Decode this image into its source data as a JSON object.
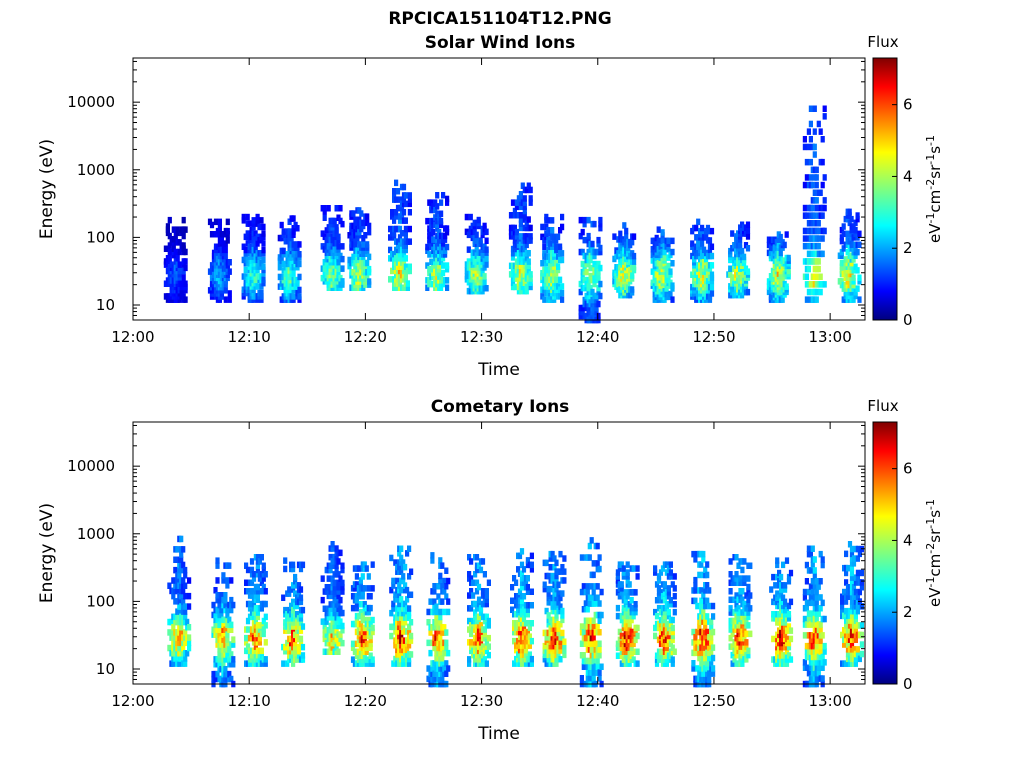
{
  "figure_title": "RPCICA151104T12.PNG",
  "chart_data": [
    {
      "type": "heatmap",
      "title": "Solar Wind Ions",
      "xlabel": "Time",
      "ylabel": "Energy (eV)",
      "x_scale": "time",
      "y_scale": "log",
      "xlim": [
        "12:00",
        "13:03"
      ],
      "ylim": [
        6,
        45000
      ],
      "x_ticks": [
        "12:00",
        "12:10",
        "12:20",
        "12:30",
        "12:40",
        "12:50",
        "13:00"
      ],
      "y_ticks": [
        "10",
        "100",
        "1000",
        "10000"
      ],
      "colorbar": {
        "title": "Flux",
        "label": "eV-1cm-2sr-1s-1",
        "range": [
          0,
          7.3
        ],
        "ticks": [
          "0",
          "2",
          "4",
          "6"
        ],
        "colormap": "jet"
      },
      "bursts": [
        {
          "t": "12:03.5",
          "e_low": 12,
          "e_high": 180,
          "peak": 1.6
        },
        {
          "t": "12:07.3",
          "e_low": 12,
          "e_high": 170,
          "peak": 2.2
        },
        {
          "t": "12:10.2",
          "e_low": 12,
          "e_high": 200,
          "peak": 3.2
        },
        {
          "t": "12:13.3",
          "e_low": 12,
          "e_high": 190,
          "peak": 3.5
        },
        {
          "t": "12:17.0",
          "e_low": 18,
          "e_high": 270,
          "peak": 3.8
        },
        {
          "t": "12:19.3",
          "e_low": 18,
          "e_high": 250,
          "peak": 4.0
        },
        {
          "t": "12:22.8",
          "e_low": 18,
          "e_high": 640,
          "peak": 4.5
        },
        {
          "t": "12:26.0",
          "e_low": 18,
          "e_high": 420,
          "peak": 4.1
        },
        {
          "t": "12:29.4",
          "e_low": 16,
          "e_high": 200,
          "peak": 3.9
        },
        {
          "t": "12:33.2",
          "e_low": 16,
          "e_high": 580,
          "peak": 4.2
        },
        {
          "t": "12:35.9",
          "e_low": 12,
          "e_high": 200,
          "peak": 4.3
        },
        {
          "t": "12:39.2",
          "e_low": 6,
          "e_high": 180,
          "peak": 4.2
        },
        {
          "t": "12:42.1",
          "e_low": 14,
          "e_high": 150,
          "peak": 4.4
        },
        {
          "t": "12:45.4",
          "e_low": 12,
          "e_high": 130,
          "peak": 4.3
        },
        {
          "t": "12:48.8",
          "e_low": 12,
          "e_high": 170,
          "peak": 4.3
        },
        {
          "t": "12:51.9",
          "e_low": 14,
          "e_high": 170,
          "peak": 4.2
        },
        {
          "t": "12:55.4",
          "e_low": 12,
          "e_high": 110,
          "peak": 4.4
        },
        {
          "t": "12:58.5",
          "e_low": 12,
          "e_high": 8000,
          "peak": 4.6
        },
        {
          "t": "13:01.5",
          "e_low": 12,
          "e_high": 270,
          "peak": 4.5
        }
      ]
    },
    {
      "type": "heatmap",
      "title": "Cometary Ions",
      "xlabel": "Time",
      "ylabel": "Energy (eV)",
      "x_scale": "time",
      "y_scale": "log",
      "xlim": [
        "12:00",
        "13:03"
      ],
      "ylim": [
        6,
        45000
      ],
      "x_ticks": [
        "12:00",
        "12:10",
        "12:20",
        "12:30",
        "12:40",
        "12:50",
        "13:00"
      ],
      "y_ticks": [
        "10",
        "100",
        "1000",
        "10000"
      ],
      "colorbar": {
        "title": "Flux",
        "label": "eV-1cm-2sr-1s-1",
        "range": [
          0,
          7.3
        ],
        "ticks": [
          "0",
          "2",
          "4",
          "6"
        ],
        "colormap": "jet"
      },
      "bursts": [
        {
          "t": "12:03.8",
          "e_low": 12,
          "e_high": 1000,
          "peak": 5.0
        },
        {
          "t": "12:07.6",
          "e_low": 6,
          "e_high": 400,
          "peak": 5.3
        },
        {
          "t": "12:10.4",
          "e_low": 12,
          "e_high": 450,
          "peak": 5.7
        },
        {
          "t": "12:13.6",
          "e_low": 12,
          "e_high": 400,
          "peak": 5.8
        },
        {
          "t": "12:17.0",
          "e_low": 18,
          "e_high": 700,
          "peak": 4.8
        },
        {
          "t": "12:19.6",
          "e_low": 12,
          "e_high": 350,
          "peak": 5.9
        },
        {
          "t": "12:22.9",
          "e_low": 12,
          "e_high": 600,
          "peak": 6.3
        },
        {
          "t": "12:26.1",
          "e_low": 6,
          "e_high": 480,
          "peak": 6.0
        },
        {
          "t": "12:29.6",
          "e_low": 12,
          "e_high": 450,
          "peak": 5.9
        },
        {
          "t": "12:33.3",
          "e_low": 12,
          "e_high": 550,
          "peak": 6.1
        },
        {
          "t": "12:36.1",
          "e_low": 12,
          "e_high": 500,
          "peak": 6.0
        },
        {
          "t": "12:39.3",
          "e_low": 6,
          "e_high": 800,
          "peak": 6.2
        },
        {
          "t": "12:42.4",
          "e_low": 12,
          "e_high": 350,
          "peak": 6.3
        },
        {
          "t": "12:45.6",
          "e_low": 12,
          "e_high": 350,
          "peak": 6.2
        },
        {
          "t": "12:48.9",
          "e_low": 6,
          "e_high": 500,
          "peak": 6.4
        },
        {
          "t": "12:52.1",
          "e_low": 12,
          "e_high": 450,
          "peak": 6.2
        },
        {
          "t": "12:55.6",
          "e_low": 12,
          "e_high": 400,
          "peak": 6.3
        },
        {
          "t": "12:58.5",
          "e_low": 6,
          "e_high": 600,
          "peak": 6.0
        },
        {
          "t": "13:01.7",
          "e_low": 12,
          "e_high": 700,
          "peak": 6.1
        }
      ]
    }
  ]
}
